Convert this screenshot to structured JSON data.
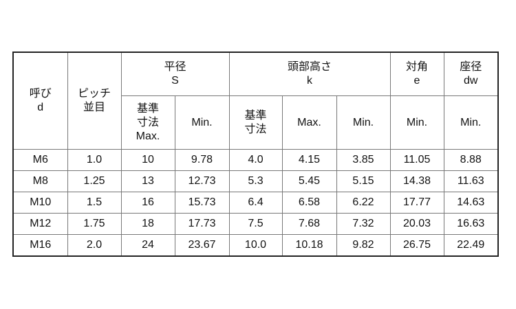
{
  "headers": {
    "nominal": "呼び\nd",
    "pitch": "ピッチ\n並目",
    "s_group": "平径\nS",
    "s_basic": "基準\n寸法\nMax.",
    "s_min": "Min.",
    "k_group": "頭部高さ\nk",
    "k_basic": "基準\n寸法",
    "k_max": "Max.",
    "k_min": "Min.",
    "e_group": "対角\ne",
    "e_min": "Min.",
    "dw_group": "座径\ndw",
    "dw_min": "Min."
  },
  "rows": [
    [
      "M6",
      "1.0",
      "10",
      "9.78",
      "4.0",
      "4.15",
      "3.85",
      "11.05",
      "8.88"
    ],
    [
      "M8",
      "1.25",
      "13",
      "12.73",
      "5.3",
      "5.45",
      "5.15",
      "14.38",
      "11.63"
    ],
    [
      "M10",
      "1.5",
      "16",
      "15.73",
      "6.4",
      "6.58",
      "6.22",
      "17.77",
      "14.63"
    ],
    [
      "M12",
      "1.75",
      "18",
      "17.73",
      "7.5",
      "7.68",
      "7.32",
      "20.03",
      "16.63"
    ],
    [
      "M16",
      "2.0",
      "24",
      "23.67",
      "10.0",
      "10.18",
      "9.82",
      "26.75",
      "22.49"
    ]
  ]
}
